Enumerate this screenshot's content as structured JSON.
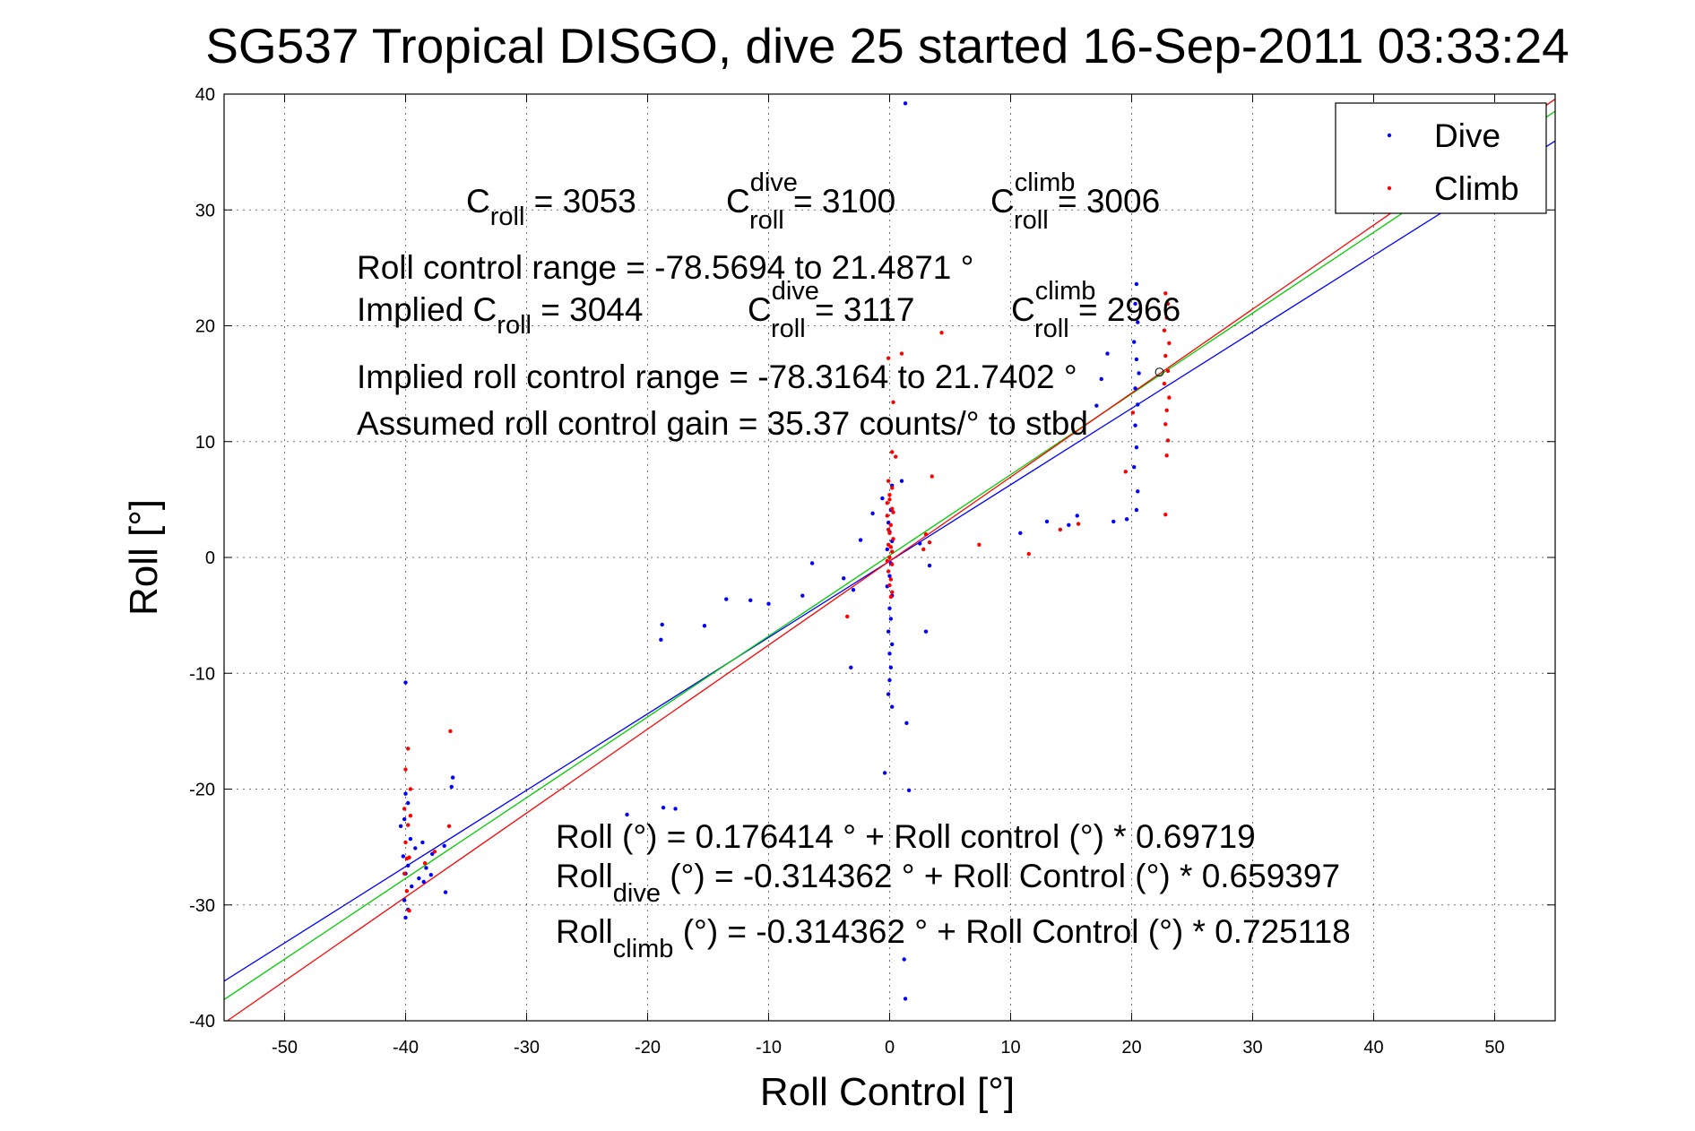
{
  "chart_data": {
    "type": "scatter",
    "title": "SG537 Tropical DISGO, dive 25 started 16-Sep-2011 03:33:24",
    "xlabel": "Roll Control [°]",
    "ylabel": "Roll [°]",
    "xlim": [
      -55,
      55
    ],
    "ylim": [
      -40,
      40
    ],
    "xticks": [
      -50,
      -40,
      -30,
      -20,
      -10,
      0,
      10,
      20,
      30,
      40,
      50
    ],
    "yticks": [
      -40,
      -30,
      -20,
      -10,
      0,
      10,
      20,
      30,
      40
    ],
    "grid": true,
    "legend": {
      "placement": "top-right",
      "entries": [
        "Dive",
        "Climb"
      ]
    },
    "colors": {
      "dive": "#0000ff",
      "climb": "#ff0000",
      "fit": "#00cc00"
    },
    "series": [
      {
        "name": "Dive",
        "color": "#0000ff",
        "points": [
          [
            1.3,
            39.2
          ],
          [
            0.2,
            6.2
          ],
          [
            0.1,
            4.1
          ],
          [
            -0.1,
            3.0
          ],
          [
            0.0,
            2.2
          ],
          [
            0.2,
            1.4
          ],
          [
            -0.2,
            0.7
          ],
          [
            0.1,
            -0.5
          ],
          [
            0.0,
            -1.6
          ],
          [
            -0.2,
            -2.5
          ],
          [
            0.2,
            -3.3
          ],
          [
            0.0,
            -4.4
          ],
          [
            0.1,
            -5.3
          ],
          [
            -0.1,
            -6.4
          ],
          [
            0.2,
            -7.5
          ],
          [
            0.0,
            -8.3
          ],
          [
            0.1,
            -9.5
          ],
          [
            0.0,
            -10.6
          ],
          [
            -0.1,
            -11.8
          ],
          [
            0.2,
            -12.9
          ],
          [
            -0.4,
            -18.6
          ],
          [
            1.4,
            -14.3
          ],
          [
            1.6,
            -20.1
          ],
          [
            1.2,
            -34.7
          ],
          [
            1.3,
            -38.1
          ],
          [
            -3.0,
            -2.8
          ],
          [
            -3.8,
            -1.8
          ],
          [
            -6.4,
            -0.5
          ],
          [
            -7.2,
            -3.3
          ],
          [
            -10.0,
            -4.0
          ],
          [
            -11.5,
            -3.7
          ],
          [
            -13.5,
            -3.6
          ],
          [
            -15.3,
            -5.9
          ],
          [
            -18.8,
            -5.8
          ],
          [
            -18.9,
            -7.1
          ],
          [
            -17.7,
            -21.7
          ],
          [
            -18.7,
            -21.6
          ],
          [
            -21.7,
            -22.2
          ],
          [
            -2.4,
            1.5
          ],
          [
            -3.2,
            -9.5
          ],
          [
            3.0,
            -6.4
          ],
          [
            3.3,
            -0.7
          ],
          [
            2.5,
            1.2
          ],
          [
            -1.4,
            3.8
          ],
          [
            -0.6,
            5.1
          ],
          [
            1.0,
            6.6
          ],
          [
            20.4,
            23.6
          ],
          [
            20.3,
            21.9
          ],
          [
            20.5,
            20.3
          ],
          [
            20.2,
            18.6
          ],
          [
            20.4,
            17.1
          ],
          [
            20.6,
            15.9
          ],
          [
            20.3,
            14.6
          ],
          [
            20.5,
            13.2
          ],
          [
            20.3,
            11.4
          ],
          [
            20.4,
            9.5
          ],
          [
            20.2,
            7.8
          ],
          [
            20.5,
            5.7
          ],
          [
            20.4,
            4.1
          ],
          [
            17.1,
            13.1
          ],
          [
            17.5,
            15.4
          ],
          [
            18.0,
            17.6
          ],
          [
            19.6,
            3.3
          ],
          [
            18.5,
            3.1
          ],
          [
            15.5,
            3.6
          ],
          [
            14.8,
            2.8
          ],
          [
            13.0,
            3.1
          ],
          [
            10.8,
            2.1
          ],
          [
            -40.0,
            -10.8
          ],
          [
            -40.0,
            -20.4
          ],
          [
            -39.8,
            -21.2
          ],
          [
            -40.1,
            -22.6
          ],
          [
            -39.6,
            -24.3
          ],
          [
            -40.2,
            -25.8
          ],
          [
            -39.8,
            -26.6
          ],
          [
            -40.0,
            -27.3
          ],
          [
            -39.5,
            -28.4
          ],
          [
            -40.1,
            -29.6
          ],
          [
            -39.8,
            -30.4
          ],
          [
            -40.0,
            -31.1
          ],
          [
            -38.6,
            -24.6
          ],
          [
            -38.3,
            -26.8
          ],
          [
            -38.9,
            -27.7
          ],
          [
            -37.8,
            -25.6
          ],
          [
            -37.9,
            -27.4
          ],
          [
            -36.8,
            -24.9
          ],
          [
            -36.7,
            -28.9
          ],
          [
            -36.1,
            -19.0
          ],
          [
            -36.2,
            -19.8
          ],
          [
            -40.4,
            -23.2
          ],
          [
            -39.2,
            -25.1
          ],
          [
            -38.5,
            -28.0
          ]
        ]
      },
      {
        "name": "Climb",
        "color": "#ff0000",
        "points": [
          [
            0.2,
            9.1
          ],
          [
            -0.1,
            6.6
          ],
          [
            0.0,
            5.4
          ],
          [
            0.2,
            4.2
          ],
          [
            -0.2,
            3.6
          ],
          [
            0.1,
            2.8
          ],
          [
            0.0,
            2.1
          ],
          [
            0.3,
            1.6
          ],
          [
            -0.1,
            1.1
          ],
          [
            0.2,
            0.5
          ],
          [
            0.0,
            0.0
          ],
          [
            0.2,
            -0.6
          ],
          [
            -0.1,
            -1.2
          ],
          [
            0.1,
            -1.9
          ],
          [
            0.0,
            -2.4
          ],
          [
            0.2,
            -3.0
          ],
          [
            -0.2,
            -0.3
          ],
          [
            0.1,
            0.9
          ],
          [
            -0.1,
            2.4
          ],
          [
            0.3,
            3.9
          ],
          [
            0.0,
            5.0
          ],
          [
            0.2,
            6.0
          ],
          [
            -0.2,
            4.7
          ],
          [
            0.1,
            -3.4
          ],
          [
            0.5,
            8.7
          ],
          [
            0.3,
            13.4
          ],
          [
            -0.1,
            17.2
          ],
          [
            1.0,
            17.6
          ],
          [
            4.3,
            19.4
          ],
          [
            3.5,
            7.0
          ],
          [
            3.3,
            1.3
          ],
          [
            2.8,
            0.7
          ],
          [
            3.0,
            2.0
          ],
          [
            7.4,
            1.1
          ],
          [
            11.5,
            0.3
          ],
          [
            14.1,
            2.4
          ],
          [
            15.6,
            2.9
          ],
          [
            19.5,
            7.4
          ],
          [
            -3.5,
            -5.1
          ],
          [
            22.8,
            22.8
          ],
          [
            23.0,
            21.9
          ],
          [
            22.9,
            20.7
          ],
          [
            22.7,
            19.6
          ],
          [
            23.1,
            18.5
          ],
          [
            22.8,
            17.4
          ],
          [
            23.0,
            16.1
          ],
          [
            22.7,
            15.0
          ],
          [
            23.1,
            13.8
          ],
          [
            22.9,
            12.7
          ],
          [
            22.8,
            11.5
          ],
          [
            23.0,
            10.1
          ],
          [
            22.9,
            8.8
          ],
          [
            22.8,
            3.7
          ],
          [
            20.1,
            12.5
          ],
          [
            -39.8,
            -16.5
          ],
          [
            -40.0,
            -18.3
          ],
          [
            -39.6,
            -20.0
          ],
          [
            -40.1,
            -21.7
          ],
          [
            -39.8,
            -23.1
          ],
          [
            -40.0,
            -24.6
          ],
          [
            -39.7,
            -25.9
          ],
          [
            -40.1,
            -27.3
          ],
          [
            -39.9,
            -28.8
          ],
          [
            -39.7,
            -30.5
          ],
          [
            -36.3,
            -15.0
          ],
          [
            -36.4,
            -23.2
          ],
          [
            -37.6,
            -25.4
          ],
          [
            -38.4,
            -26.4
          ],
          [
            -39.6,
            -22.3
          ],
          [
            -39.9,
            -26.0
          ]
        ]
      }
    ],
    "fit_lines": [
      {
        "color": "#0000ff",
        "intercept": -0.314362,
        "slope": 0.659397
      },
      {
        "color": "#00cc00",
        "intercept": 0.176414,
        "slope": 0.69719
      },
      {
        "color": "#ff0000",
        "intercept": -0.314362,
        "slope": 0.725118
      }
    ],
    "annotations": {
      "c_roll": {
        "base": "C",
        "sub": "roll",
        "value": " = 3053"
      },
      "c_roll_dive": {
        "base": "C",
        "sup": "dive",
        "sub": "roll",
        "value": " = 3100"
      },
      "c_roll_climb": {
        "base": "C",
        "sup": "climb",
        "sub": "roll",
        "value": " = 3006"
      },
      "range": "Roll control range = -78.5694 to 21.4871 °",
      "implied": {
        "prefix": "Implied C",
        "sub": "roll",
        "value": " = 3044"
      },
      "implied_dive": {
        "base": "C",
        "sup": "dive",
        "sub": "roll",
        "value": " = 3117"
      },
      "implied_climb": {
        "base": "C",
        "sup": "climb",
        "sub": "roll",
        "value": " = 2966"
      },
      "implied_range": "Implied roll control range = -78.3164 to 21.7402 °",
      "gain": "Assumed roll control gain = 35.37 counts/° to stbd",
      "eq1": "Roll (°) = 0.176414 ° + Roll control (°) * 0.69719",
      "eq2": {
        "base": "Roll",
        "sub": "dive",
        "rest": " (°) = -0.314362 ° + Roll Control (°) * 0.659397"
      },
      "eq3": {
        "base": "Roll",
        "sub": "climb",
        "rest": " (°) = -0.314362 ° + Roll Control (°) * 0.725118"
      }
    }
  }
}
